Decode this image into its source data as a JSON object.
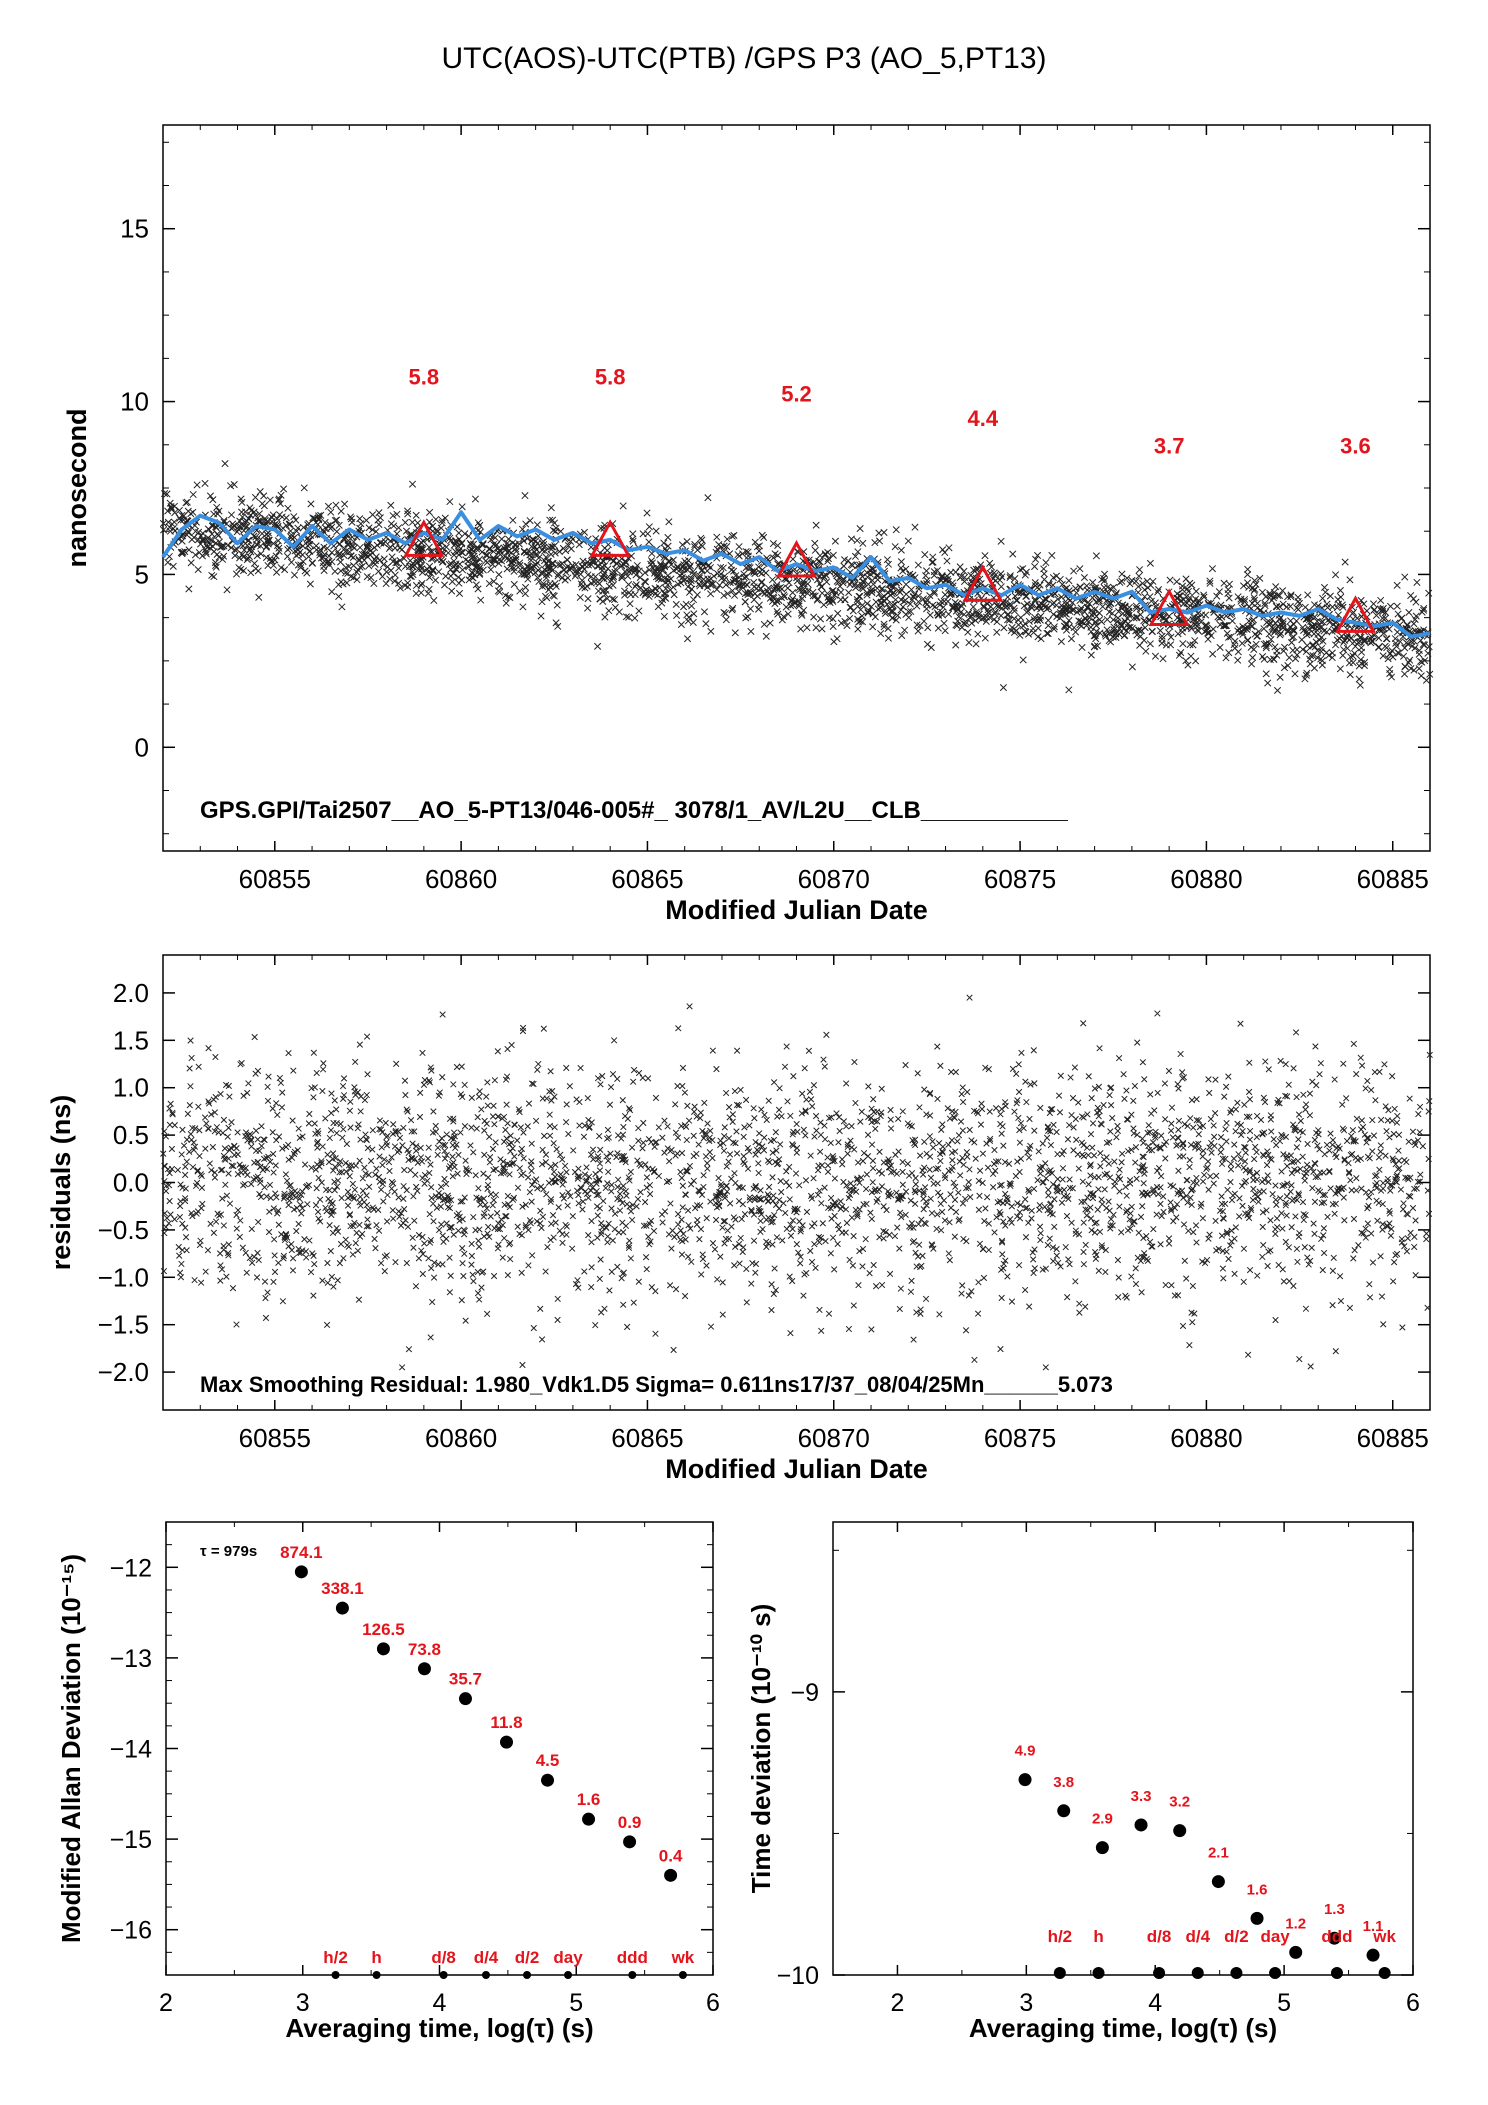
{
  "page_title": "UTC(AOS)-UTC(PTB)  /GPS  P3  (AO_5,PT13)",
  "chart_data": [
    {
      "type": "scatter",
      "id": "main",
      "xlabel": "Modified Julian Date",
      "ylabel": "nanosecond",
      "xlim": [
        60852,
        60886
      ],
      "ylim": [
        -3,
        18
      ],
      "xticks": [
        60855,
        60860,
        60865,
        60870,
        60875,
        60880,
        60885
      ],
      "yticks": [
        0,
        5,
        10,
        15
      ],
      "annotation": "GPS.GPI/Tai2507__AO_5-PT13/046-005#_  3078/1_AV/L2U__CLB___________",
      "markers": {
        "x": [
          60859,
          60864,
          60869,
          60874,
          60879,
          60884
        ],
        "y": [
          5.9,
          5.9,
          5.3,
          4.6,
          3.9,
          3.7
        ],
        "labels": [
          "5.8",
          "5.8",
          "5.2",
          "4.4",
          "3.7",
          "3.6"
        ],
        "label_y": [
          10.5,
          10.5,
          10.0,
          9.3,
          8.5,
          8.5
        ]
      },
      "smooth_line": {
        "x": [
          60852,
          60852.5,
          60853,
          60853.5,
          60854,
          60854.5,
          60855,
          60855.5,
          60856,
          60856.5,
          60857,
          60857.5,
          60858,
          60858.5,
          60859,
          60859.5,
          60860,
          60860.5,
          60861,
          60861.5,
          60862,
          60862.5,
          60863,
          60863.5,
          60864,
          60864.5,
          60865,
          60865.5,
          60866,
          60866.5,
          60867,
          60867.5,
          60868,
          60868.5,
          60869,
          60869.5,
          60870,
          60870.5,
          60871,
          60871.5,
          60872,
          60872.5,
          60873,
          60873.5,
          60874,
          60874.5,
          60875,
          60875.5,
          60876,
          60876.5,
          60877,
          60877.5,
          60878,
          60878.5,
          60879,
          60879.5,
          60880,
          60880.5,
          60881,
          60881.5,
          60882,
          60882.5,
          60883,
          60883.5,
          60884,
          60884.5,
          60885,
          60885.5,
          60886
        ],
        "y": [
          5.5,
          6.3,
          6.7,
          6.5,
          5.9,
          6.4,
          6.3,
          5.8,
          6.4,
          5.9,
          6.3,
          6.0,
          6.2,
          5.9,
          6.2,
          6.0,
          6.8,
          6.0,
          6.4,
          6.1,
          6.3,
          6.0,
          6.2,
          5.9,
          6.0,
          5.7,
          5.8,
          5.6,
          5.7,
          5.4,
          5.6,
          5.3,
          5.5,
          5.1,
          5.3,
          5.1,
          5.2,
          4.9,
          5.5,
          4.8,
          4.9,
          4.6,
          4.7,
          4.4,
          4.6,
          4.4,
          4.7,
          4.4,
          4.6,
          4.3,
          4.5,
          4.3,
          4.5,
          3.9,
          4.0,
          3.9,
          4.1,
          3.9,
          4.0,
          3.8,
          3.9,
          3.8,
          4.0,
          3.7,
          3.6,
          3.5,
          3.6,
          3.2,
          3.3
        ]
      },
      "scatter_model": {
        "n": 3000,
        "trend_start": 6.3,
        "trend_end": 3.2,
        "sigma": 0.6
      }
    },
    {
      "type": "scatter",
      "id": "residuals",
      "xlabel": "Modified Julian Date",
      "ylabel": "residuals (ns)",
      "xlim": [
        60852,
        60886
      ],
      "ylim": [
        -2.4,
        2.4
      ],
      "xticks": [
        60855,
        60860,
        60865,
        60870,
        60875,
        60880,
        60885
      ],
      "yticks": [
        -2.0,
        -1.5,
        -1.0,
        -0.5,
        0.0,
        0.5,
        1.0,
        1.5,
        2.0
      ],
      "ytick_labels": [
        "−2.0",
        "−1.5",
        "−1.0",
        "−0.5",
        "0.0",
        "0.5",
        "1.0",
        "1.5",
        "2.0"
      ],
      "annotation": "Max Smoothing Residual: 1.980_Vdk1.D5  Sigma= 0.611ns17/37_08/04/25Mn______5.073",
      "scatter_model": {
        "n": 3000,
        "sigma": 0.6
      }
    },
    {
      "type": "scatter",
      "id": "mdev",
      "xlabel": "Averaging time, log(τ) (s)",
      "ylabel": "Modified Allan Deviation (10⁻¹⁵)",
      "xlim": [
        2,
        6
      ],
      "ylim": [
        -16.5,
        -11.5
      ],
      "xticks": [
        2,
        3,
        4,
        5,
        6
      ],
      "yticks": [
        -12,
        -13,
        -14,
        -15,
        -16
      ],
      "ytick_labels": [
        "−12",
        "−13",
        "−14",
        "−15",
        "−16"
      ],
      "tau_note": "τ = 979s",
      "points": {
        "x": [
          2.99,
          3.29,
          3.59,
          3.89,
          4.19,
          4.49,
          4.79,
          5.09,
          5.39,
          5.69
        ],
        "y": [
          -12.05,
          -12.45,
          -12.9,
          -13.12,
          -13.45,
          -13.93,
          -14.35,
          -14.78,
          -15.03,
          -15.4
        ],
        "labels": [
          "874.1",
          "338.1",
          "126.5",
          "73.8",
          "35.7",
          "11.8",
          "4.5",
          "1.6",
          "0.9",
          "0.4"
        ]
      },
      "time_markers": {
        "x": [
          3.24,
          3.54,
          4.03,
          4.34,
          4.64,
          4.94,
          5.41,
          5.78
        ],
        "labels": [
          "h/2",
          "h",
          "d/8",
          "d/4",
          "d/2",
          "day",
          "ddd",
          "wk"
        ]
      }
    },
    {
      "type": "scatter",
      "id": "tdev",
      "xlabel": "Averaging time, log(τ) (s)",
      "ylabel": "Time deviation (10⁻¹⁰ s)",
      "xlim": [
        1.5,
        6
      ],
      "ylim": [
        -10,
        -8.4
      ],
      "xticks": [
        2,
        3,
        4,
        5,
        6
      ],
      "yticks": [
        -9,
        -10
      ],
      "ytick_labels": [
        "−9",
        "−10"
      ],
      "points": {
        "x": [
          2.99,
          3.29,
          3.59,
          3.89,
          4.19,
          4.49,
          4.79,
          5.09,
          5.39,
          5.69
        ],
        "y": [
          -9.31,
          -9.42,
          -9.55,
          -9.47,
          -9.49,
          -9.67,
          -9.8,
          -9.92,
          -9.87,
          -9.93
        ],
        "labels": [
          "4.9",
          "3.8",
          "2.9",
          "3.3",
          "3.2",
          "2.1",
          "1.6",
          "1.2",
          "1.3",
          "1.1"
        ]
      },
      "time_markers": {
        "x": [
          3.26,
          3.56,
          4.03,
          4.33,
          4.63,
          4.93,
          5.41,
          5.78
        ],
        "labels": [
          "h/2",
          "h",
          "d/8",
          "d/4",
          "d/2",
          "day",
          "ddd",
          "wk"
        ]
      }
    }
  ]
}
